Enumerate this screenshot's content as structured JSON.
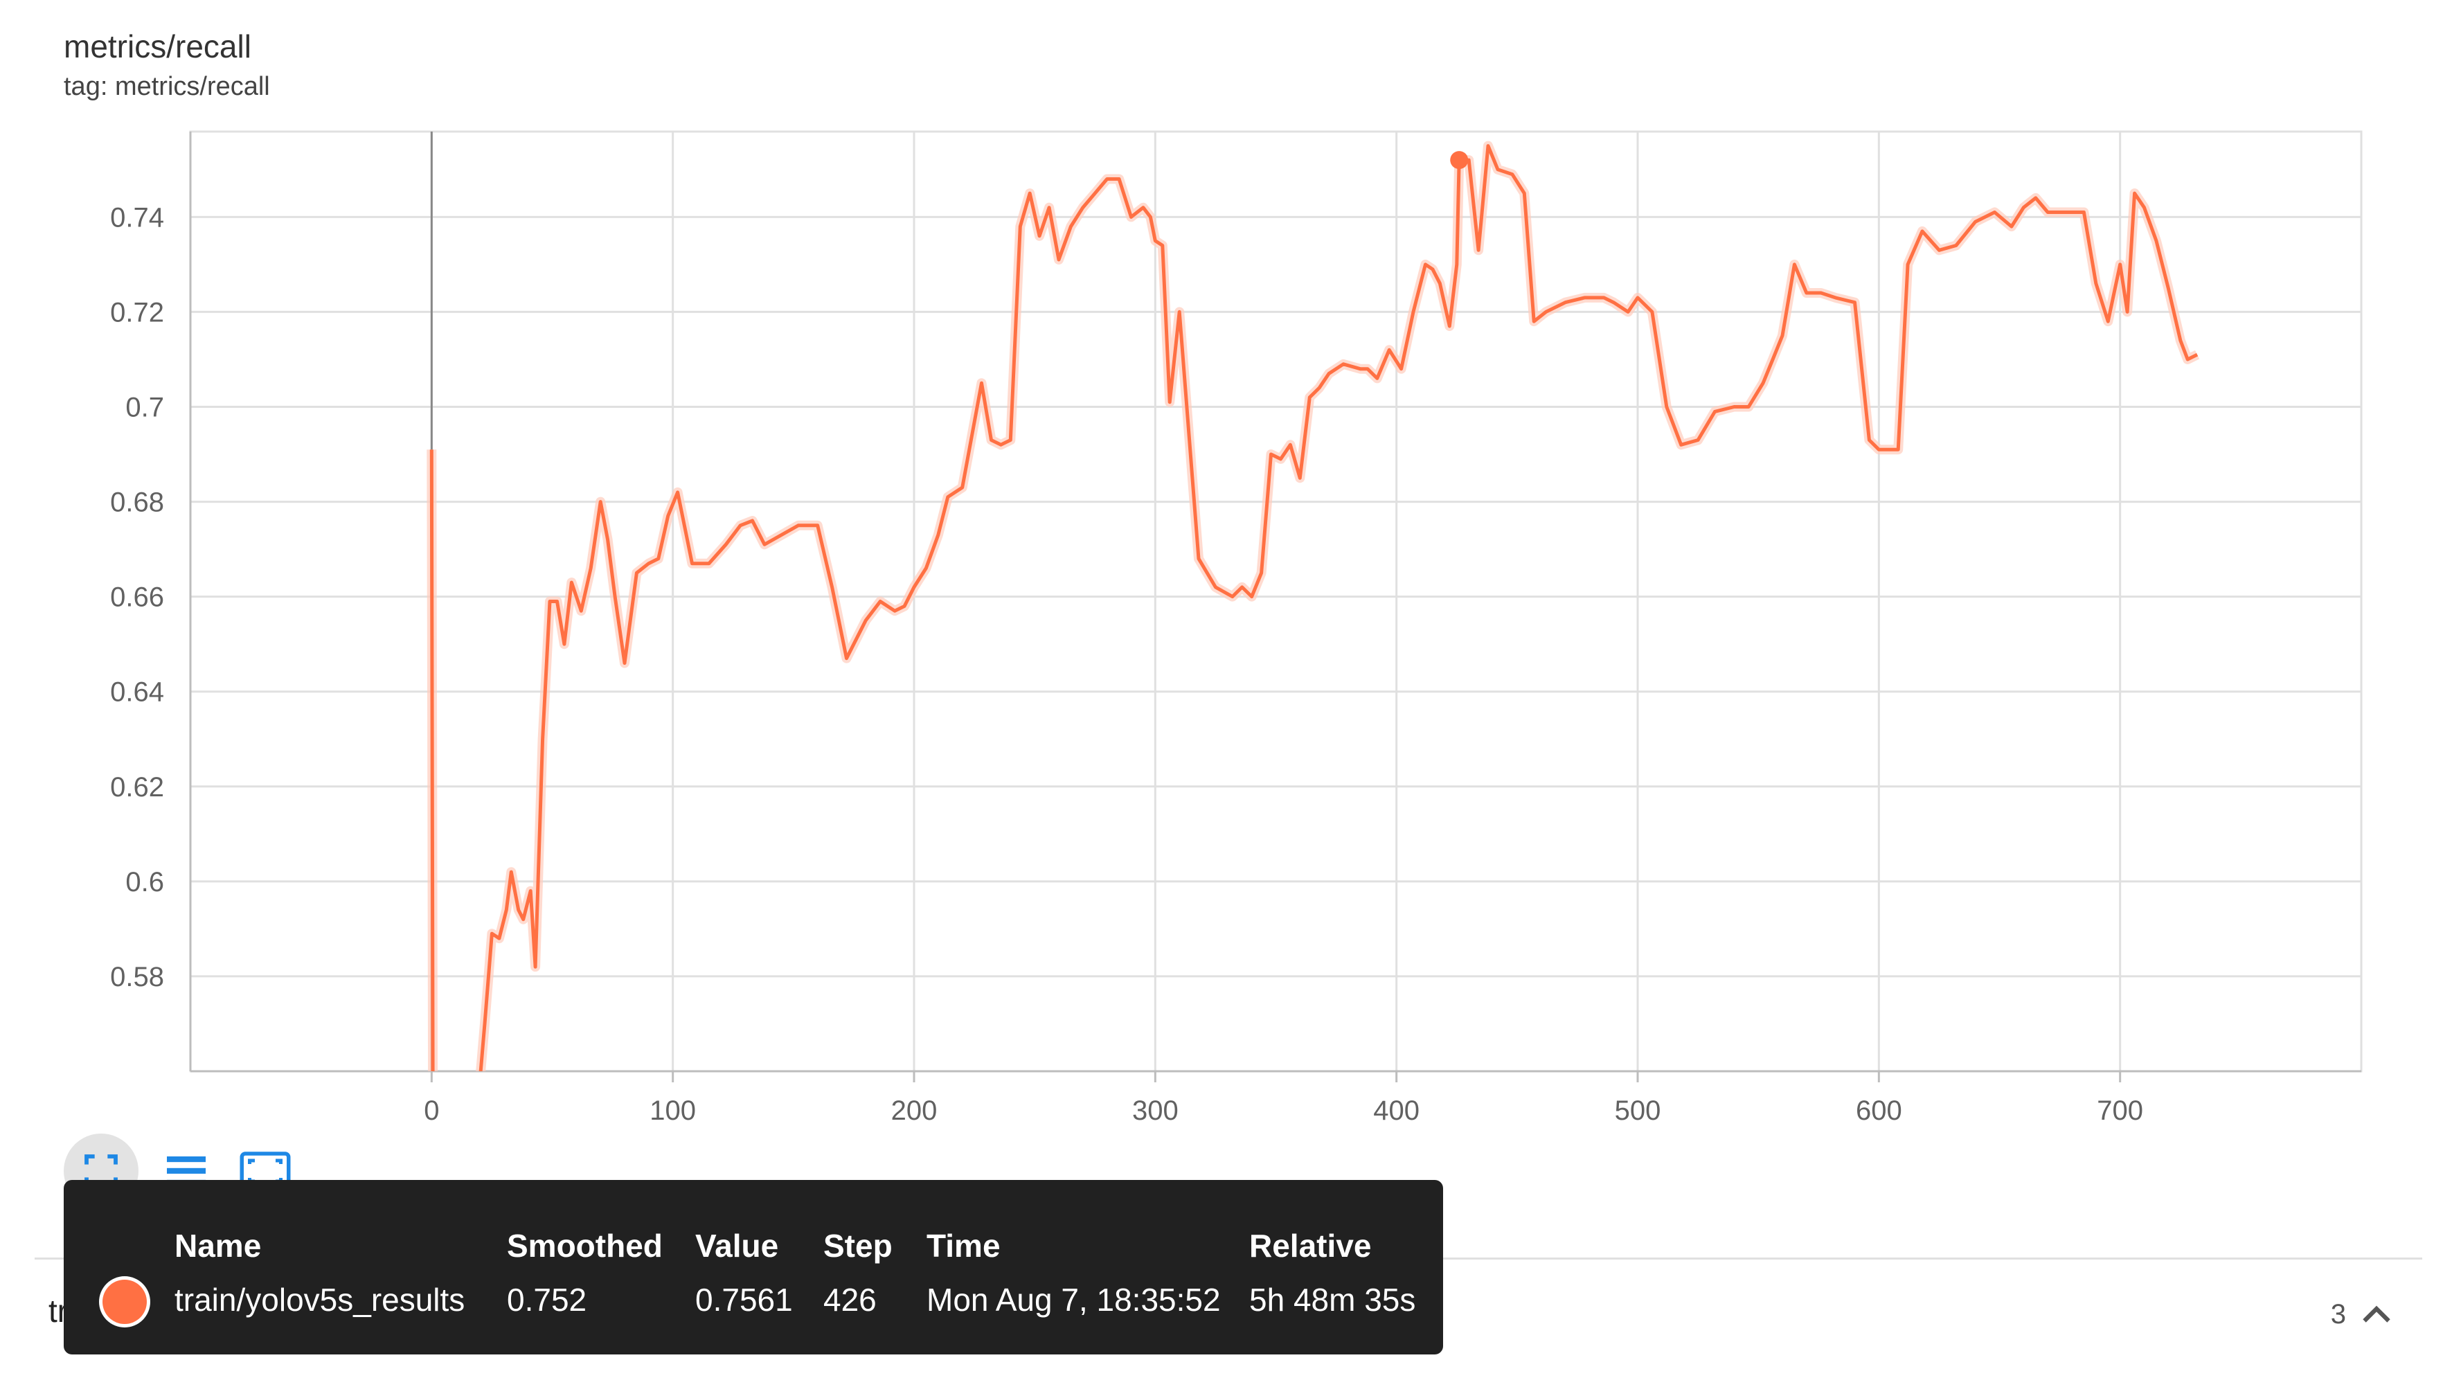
{
  "header": {
    "title": "metrics/recall",
    "tag": "tag: metrics/recall"
  },
  "colors": {
    "series": "#ff7043",
    "series_light": "#ffccbc",
    "grid": "#e0e0e0",
    "axis": "#bdbdbd",
    "tooltip_bg": "#212121",
    "toolbar_icon": "#1e88e5"
  },
  "chart_data": {
    "type": "line",
    "title": "metrics/recall",
    "xlabel": "",
    "ylabel": "",
    "xlim": [
      -100,
      800
    ],
    "ylim": [
      0.56,
      0.758
    ],
    "x_ticks": [
      0,
      100,
      200,
      300,
      400,
      500,
      600,
      700
    ],
    "y_ticks": [
      0.58,
      0.6,
      0.62,
      0.64,
      0.66,
      0.68,
      0.7,
      0.72,
      0.74
    ],
    "y_tick_labels": [
      "0.58",
      "0.6",
      "0.62",
      "0.64",
      "0.66",
      "0.68",
      "0.7",
      "0.72",
      "0.74"
    ],
    "grid": true,
    "series": [
      {
        "name": "train/yolov5s_results",
        "x": [
          0,
          0.5,
          10,
          20,
          22,
          25,
          28,
          31,
          33,
          36,
          38,
          41,
          43,
          46,
          49,
          52,
          55,
          58,
          62,
          66,
          70,
          73,
          76,
          80,
          85,
          90,
          94,
          98,
          102,
          108,
          115,
          122,
          128,
          133,
          138,
          145,
          152,
          156,
          160,
          166,
          172,
          180,
          186,
          192,
          196,
          200,
          205,
          210,
          214,
          220,
          228,
          232,
          236,
          240,
          244,
          248,
          252,
          256,
          260,
          265,
          270,
          275,
          280,
          285,
          290,
          295,
          298,
          300,
          303,
          306,
          310,
          318,
          325,
          332,
          336,
          340,
          344,
          348,
          352,
          356,
          360,
          364,
          368,
          372,
          378,
          385,
          388,
          392,
          397,
          402,
          407,
          412,
          415,
          418,
          422,
          425,
          426,
          430,
          434,
          438,
          442,
          448,
          453,
          457,
          462,
          470,
          478,
          486,
          490,
          496,
          500,
          506,
          512,
          518,
          525,
          532,
          540,
          546,
          552,
          556,
          560,
          565,
          570,
          576,
          582,
          590,
          596,
          600,
          604,
          608,
          612,
          618,
          625,
          632,
          640,
          648,
          655,
          660,
          665,
          670,
          678,
          685,
          690,
          695,
          700,
          703,
          706,
          710,
          715,
          720,
          725,
          728,
          732
        ],
        "values": [
          0.691,
          0.558,
          0.556,
          0.558,
          0.57,
          0.589,
          0.588,
          0.594,
          0.602,
          0.594,
          0.592,
          0.598,
          0.582,
          0.63,
          0.659,
          0.659,
          0.65,
          0.663,
          0.657,
          0.666,
          0.68,
          0.672,
          0.66,
          0.646,
          0.665,
          0.667,
          0.668,
          0.677,
          0.682,
          0.667,
          0.667,
          0.671,
          0.675,
          0.676,
          0.671,
          0.673,
          0.675,
          0.675,
          0.675,
          0.662,
          0.647,
          0.655,
          0.659,
          0.657,
          0.658,
          0.662,
          0.666,
          0.673,
          0.681,
          0.683,
          0.705,
          0.693,
          0.692,
          0.693,
          0.738,
          0.745,
          0.736,
          0.742,
          0.731,
          0.738,
          0.742,
          0.745,
          0.748,
          0.748,
          0.74,
          0.742,
          0.74,
          0.735,
          0.734,
          0.701,
          0.72,
          0.668,
          0.662,
          0.66,
          0.662,
          0.66,
          0.665,
          0.69,
          0.689,
          0.692,
          0.685,
          0.702,
          0.704,
          0.707,
          0.709,
          0.708,
          0.708,
          0.706,
          0.712,
          0.708,
          0.72,
          0.73,
          0.729,
          0.726,
          0.717,
          0.73,
          0.752,
          0.752,
          0.733,
          0.755,
          0.75,
          0.749,
          0.745,
          0.718,
          0.72,
          0.722,
          0.723,
          0.723,
          0.722,
          0.72,
          0.723,
          0.72,
          0.7,
          0.692,
          0.693,
          0.699,
          0.7,
          0.7,
          0.705,
          0.71,
          0.715,
          0.73,
          0.724,
          0.724,
          0.723,
          0.722,
          0.693,
          0.691,
          0.691,
          0.691,
          0.73,
          0.737,
          0.733,
          0.734,
          0.739,
          0.741,
          0.738,
          0.742,
          0.744,
          0.741,
          0.741,
          0.741,
          0.726,
          0.718,
          0.73,
          0.72,
          0.745,
          0.742,
          0.735,
          0.725,
          0.714,
          0.71,
          0.711
        ]
      }
    ],
    "highlight": {
      "step": 426,
      "smoothed": 0.752
    }
  },
  "tooltip": {
    "headers": {
      "name": "Name",
      "smoothed": "Smoothed",
      "value": "Value",
      "step": "Step",
      "time": "Time",
      "relative": "Relative"
    },
    "row": {
      "name": "train/yolov5s_results",
      "smoothed": "0.752",
      "value": "0.7561",
      "step": "426",
      "time": "Mon Aug 7, 18:35:52",
      "relative": "5h 48m 35s"
    }
  },
  "toolbar": {
    "icons": [
      "fit-domain-icon",
      "toggle-log-scale-icon",
      "expand-chart-icon"
    ]
  },
  "footer": {
    "run_label": "trai",
    "count": "3"
  }
}
